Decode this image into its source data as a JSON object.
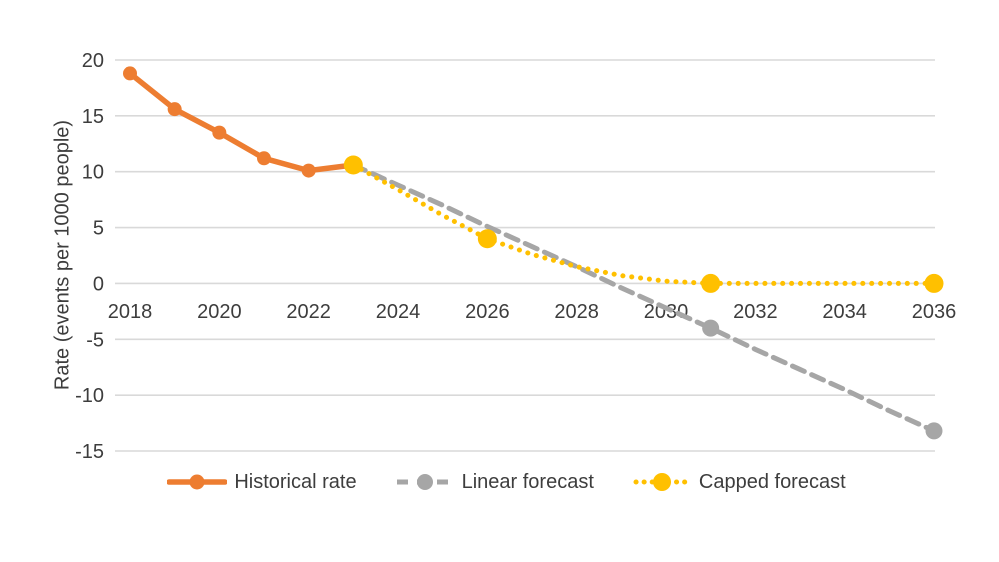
{
  "chart_data": {
    "type": "line",
    "title": "",
    "ylabel": "Rate (events per 1000 people)",
    "xlabel": "",
    "x_ticks": [
      2018,
      2020,
      2022,
      2024,
      2026,
      2028,
      2030,
      2032,
      2034,
      2036
    ],
    "y_ticks": [
      20,
      15,
      10,
      5,
      0,
      -5,
      -10,
      -15
    ],
    "xlim": [
      2018,
      2036
    ],
    "ylim": [
      -15,
      20
    ],
    "grid": "horizontal gridlines only",
    "legend_position": "bottom",
    "colors": {
      "gridline": "#d9d9d9",
      "axis_text": "#3d3d3d",
      "background": "#ffffff",
      "historical": "#ed7d31",
      "linear": "#a6a6a6",
      "capped": "#ffc000"
    },
    "series": [
      {
        "name": "Historical rate",
        "color": "#ed7d31",
        "style": "solid",
        "x": [
          2018,
          2019,
          2020,
          2021,
          2022,
          2023
        ],
        "values": [
          18.8,
          15.6,
          13.5,
          11.2,
          10.1,
          10.6
        ],
        "marker_x": [
          2018,
          2019,
          2020,
          2021,
          2022,
          2023
        ],
        "marker_radius": 7,
        "stroke_width": 5.5
      },
      {
        "name": "Linear forecast",
        "color": "#a6a6a6",
        "style": "dashed",
        "x": [
          2023,
          2024,
          2025,
          2026,
          2027,
          2028,
          2029,
          2030,
          2031,
          2032,
          2033,
          2034,
          2035,
          2036
        ],
        "values": [
          10.6,
          8.8,
          7.0,
          5.1,
          3.3,
          1.5,
          -0.4,
          -2.2,
          -4.0,
          -5.9,
          -7.7,
          -9.5,
          -11.4,
          -13.2
        ],
        "marker_x": [
          2031,
          2036
        ],
        "marker_radius": 8.5,
        "stroke_width": 5
      },
      {
        "name": "Capped forecast",
        "color": "#ffc000",
        "style": "dotted",
        "x": [
          2023,
          2024,
          2025,
          2026,
          2027,
          2028,
          2029,
          2030,
          2031,
          2032,
          2033,
          2034,
          2035,
          2036
        ],
        "values": [
          10.6,
          8.4,
          6.1,
          4.0,
          2.6,
          1.5,
          0.7,
          0.2,
          0.0,
          0.0,
          0.0,
          0.0,
          0.0,
          0.0
        ],
        "marker_x": [
          2023,
          2026,
          2031,
          2036
        ],
        "marker_radius": 9.5,
        "stroke_width": 5
      }
    ]
  }
}
